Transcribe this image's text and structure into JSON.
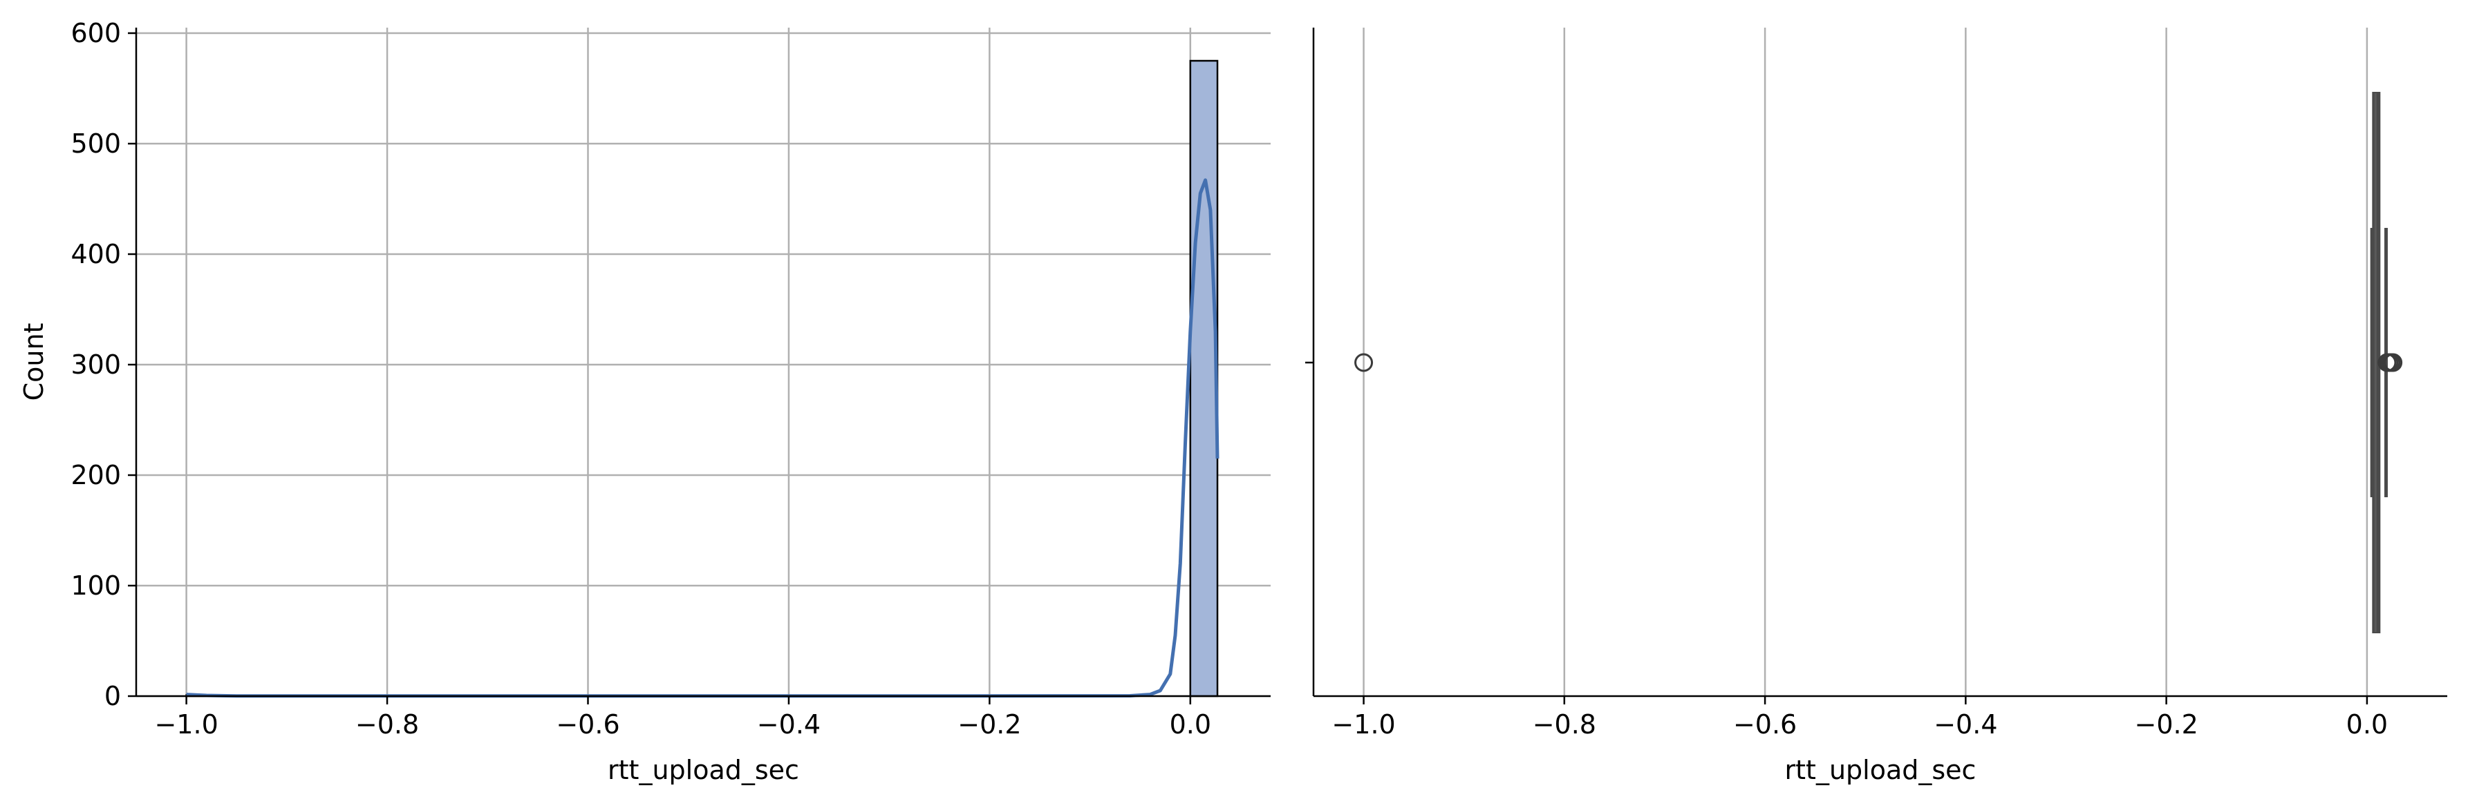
{
  "chart_data": [
    {
      "type": "histogram",
      "xlabel": "rtt_upload_sec",
      "ylabel": "Count",
      "xlim": [
        -1.05,
        0.08
      ],
      "ylim": [
        0,
        605
      ],
      "xticks": [
        "−1.0",
        "−0.8",
        "−0.6",
        "−0.4",
        "−0.2",
        "0.0"
      ],
      "xtick_values": [
        -1.0,
        -0.8,
        -0.6,
        -0.4,
        -0.2,
        0.0
      ],
      "yticks": [
        "0",
        "100",
        "200",
        "300",
        "400",
        "500",
        "600"
      ],
      "ytick_values": [
        0,
        100,
        200,
        300,
        400,
        500,
        600
      ],
      "grid": true,
      "bars": [
        {
          "x0": -1.0,
          "x1": -0.966,
          "count": 1
        },
        {
          "x0": 0.0,
          "x1": 0.027,
          "count": 575
        }
      ],
      "kde": [
        [
          -1.0,
          1.5
        ],
        [
          -0.98,
          0.6
        ],
        [
          -0.95,
          0.2
        ],
        [
          -0.9,
          0.1
        ],
        [
          -0.6,
          0.1
        ],
        [
          -0.3,
          0.1
        ],
        [
          -0.06,
          0.3
        ],
        [
          -0.04,
          1.5
        ],
        [
          -0.03,
          5
        ],
        [
          -0.02,
          20
        ],
        [
          -0.015,
          55
        ],
        [
          -0.01,
          120
        ],
        [
          -0.005,
          230
        ],
        [
          0.0,
          330
        ],
        [
          0.005,
          410
        ],
        [
          0.01,
          455
        ],
        [
          0.015,
          467
        ],
        [
          0.02,
          440
        ],
        [
          0.025,
          330
        ],
        [
          0.027,
          215
        ]
      ],
      "colors": {
        "bar_fill": "#a3b6d9",
        "bar_edge": "#000000",
        "kde": "#4470b0"
      }
    },
    {
      "type": "boxplot",
      "xlabel": "rtt_upload_sec",
      "xlim": [
        -1.05,
        0.08
      ],
      "xticks": [
        "−1.0",
        "−0.8",
        "−0.6",
        "−0.4",
        "−0.2",
        "0.0"
      ],
      "xtick_values": [
        -1.0,
        -0.8,
        -0.6,
        -0.4,
        -0.2,
        0.0
      ],
      "grid": "x",
      "box": {
        "q1": 0.0065,
        "median": 0.0085,
        "q3": 0.0115,
        "whisker_low": 0.005,
        "whisker_high": 0.019
      },
      "outliers": [
        -1.0,
        0.02,
        0.022,
        0.024,
        0.026
      ],
      "colors": {
        "box": "#4a4a4a",
        "outlier_edge": "#3b3b3b"
      }
    }
  ]
}
